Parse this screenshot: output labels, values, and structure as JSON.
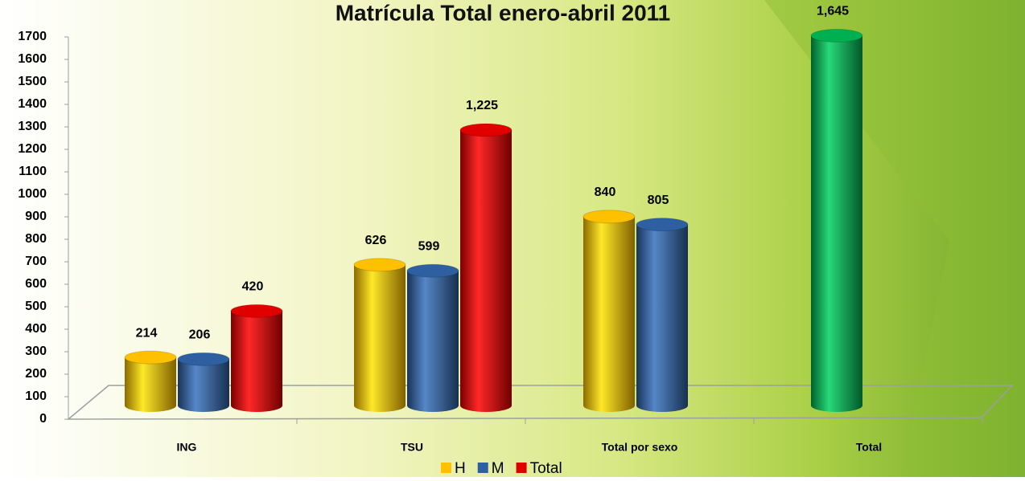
{
  "chart_data": {
    "type": "bar3d",
    "title": "Matrícula Total enero-abril 2011",
    "categories": [
      "ING",
      "TSU",
      "Total  por sexo",
      "Total"
    ],
    "series": [
      {
        "name": "H",
        "color": "#ffc000",
        "values": [
          214,
          626,
          840,
          null
        ],
        "value_labels": [
          "214",
          "626",
          "840",
          null
        ]
      },
      {
        "name": "M",
        "color": "#2e5fa0",
        "values": [
          206,
          599,
          805,
          null
        ],
        "value_labels": [
          "206",
          "599",
          "805",
          null
        ]
      },
      {
        "name": "Total",
        "color": "#e00000",
        "colors": [
          "#e00000",
          "#e00000",
          null,
          "#00b050"
        ],
        "values": [
          420,
          1225,
          null,
          1645
        ],
        "value_labels": [
          "420",
          "1,225",
          null,
          "1,645"
        ]
      }
    ],
    "ylim": [
      0,
      1700
    ],
    "yticks": [
      0,
      100,
      200,
      300,
      400,
      500,
      600,
      700,
      800,
      900,
      1000,
      1100,
      1200,
      1300,
      1400,
      1500,
      1600,
      1700
    ],
    "legend": "bottom"
  }
}
